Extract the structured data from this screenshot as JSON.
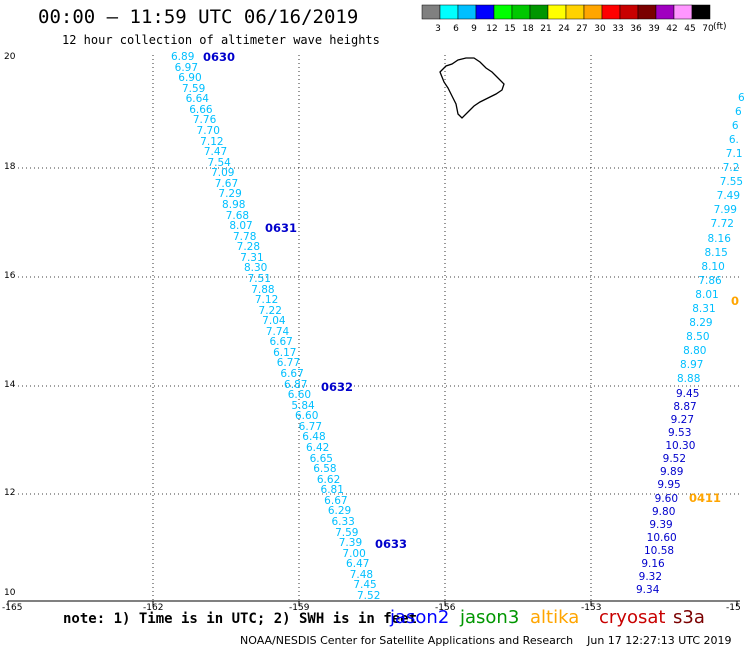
{
  "title": "00:00 – 11:59 UTC 06/16/2019",
  "subtitle": "12 hour collection of altimeter wave heights",
  "note": "note: 1) Time is in UTC; 2) SWH is in feet",
  "credit": "NOAA/NESDIS Center for Satellite Applications and Research    Jun 17 12:27:13 UTC 2019",
  "legend": {
    "units": "(ft)",
    "labels": [
      "3",
      "6",
      "9",
      "12",
      "15",
      "18",
      "21",
      "24",
      "27",
      "30",
      "33",
      "36",
      "39",
      "42",
      "45",
      "70"
    ],
    "colors": [
      "#808080",
      "#00ffff",
      "#00bfff",
      "#0000ff",
      "#00ff00",
      "#00c800",
      "#009600",
      "#ffff00",
      "#ffd200",
      "#ffa500",
      "#ff0000",
      "#c80000",
      "#7a0000",
      "#a000c0",
      "#ff96ff",
      "#000000"
    ]
  },
  "satellites": [
    {
      "name": "jason2",
      "color": "#0000ff"
    },
    {
      "name": "jason3",
      "color": "#009600"
    },
    {
      "name": "altika",
      "color": "#ffa500"
    },
    {
      "name": "cryosat",
      "color": "#c80000"
    },
    {
      "name": "s3a",
      "color": "#7a0000"
    }
  ],
  "axes": {
    "lon_ticks": [
      "-165",
      "-162",
      "-159",
      "-156",
      "-153",
      "-15"
    ],
    "lat_ticks": [
      "20",
      "18",
      "16",
      "14",
      "12",
      "10"
    ]
  },
  "tracks": {
    "track1": {
      "color": "#00bfff",
      "time_labels": [
        "0630",
        "0631",
        "0632",
        "0633"
      ],
      "values": [
        "6.89",
        "6.97",
        "6.90",
        "7.59",
        "6.64",
        "6.66",
        "7.76",
        "7.70",
        "7.12",
        "7.47",
        "7.54",
        "7.09",
        "7.67",
        "7.29",
        "8.98",
        "7.68",
        "8.07",
        "7.78",
        "7.28",
        "7.31",
        "8.30",
        "7.51",
        "7.88",
        "7.12",
        "7.22",
        "7.04",
        "7.74",
        "6.67",
        "6.17",
        "6.77",
        "6.67",
        "6.87",
        "6.60",
        "5.84",
        "6.60",
        "6.77",
        "6.48",
        "6.42",
        "6.65",
        "6.58",
        "6.62",
        "6.81",
        "6.67",
        "6.29",
        "6.33",
        "7.59",
        "7.39",
        "7.00",
        "6.47",
        "7.48",
        "7.45",
        "7.52"
      ]
    },
    "track2_upper": {
      "color": "#00bfff",
      "values": [
        "6",
        "6",
        "6",
        "6.",
        "7.1",
        "7.2",
        "7.55",
        "7.49",
        "7.99",
        "7.72",
        "8.16",
        "8.15",
        "8.10",
        "7.86",
        "8.01",
        "8.31",
        "8.29",
        "8.50",
        "8.80",
        "8.97",
        "8.88"
      ]
    },
    "track2_lower": {
      "color": "#0000cc",
      "values": [
        "9.45",
        "8.87",
        "9.27",
        "9.53",
        "10.30",
        "9.52",
        "9.89",
        "9.95",
        "9.60",
        "9.80",
        "9.39",
        "10.60",
        "10.58",
        "9.16",
        "9.32",
        "9.34"
      ]
    },
    "altika_labels": {
      "color": "#ffa500",
      "values": [
        "0",
        "0411"
      ]
    }
  }
}
